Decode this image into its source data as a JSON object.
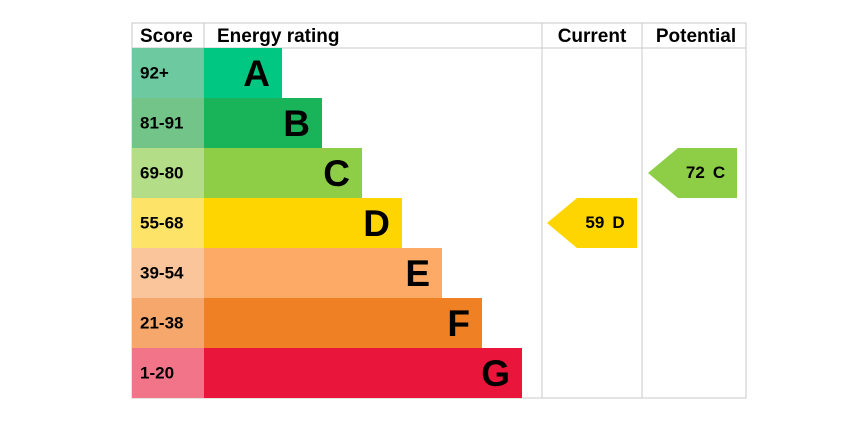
{
  "header": {
    "score": "Score",
    "rating": "Energy rating",
    "current": "Current",
    "potential": "Potential"
  },
  "rows": [
    {
      "score": "92+",
      "rating": "A"
    },
    {
      "score": "81-91",
      "rating": "B"
    },
    {
      "score": "69-80",
      "rating": "C"
    },
    {
      "score": "55-68",
      "rating": "D"
    },
    {
      "score": "39-54",
      "rating": "E"
    },
    {
      "score": "21-38",
      "rating": "F"
    },
    {
      "score": "1-20",
      "rating": "G"
    }
  ],
  "current": {
    "score": 59,
    "rating": "D"
  },
  "potential": {
    "score": 72,
    "rating": "C"
  }
}
